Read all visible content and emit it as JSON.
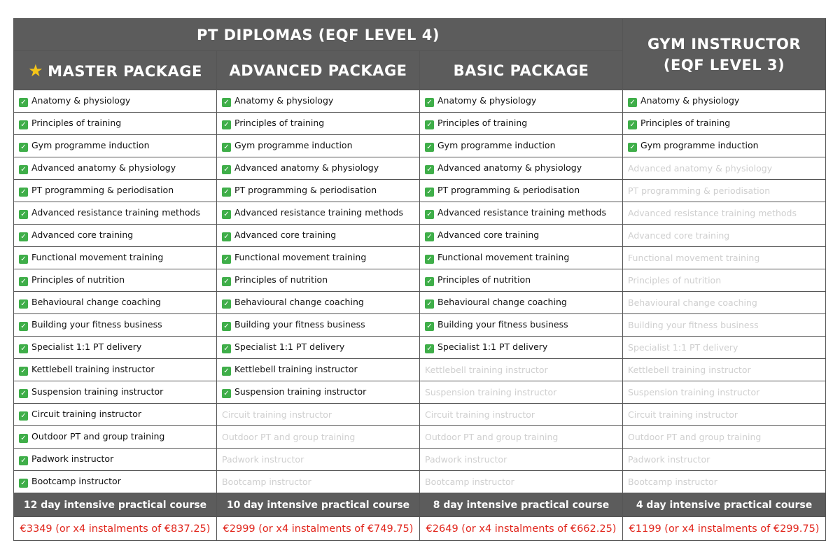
{
  "header": {
    "pt_title": "PT DIPLOMAS (EQF LEVEL 4)",
    "gym_line1": "GYM INSTRUCTOR",
    "gym_line2": "(EQF LEVEL 3)",
    "star_icon": "star-icon"
  },
  "columns": [
    {
      "name": "MASTER PACKAGE",
      "duration": "12 day intensive practical course",
      "price": "€3349 (or x4 instalments of €837.25)"
    },
    {
      "name": "ADVANCED PACKAGE",
      "duration": "10 day intensive practical course",
      "price": "€2999 (or x4 instalments of €749.75)"
    },
    {
      "name": "BASIC PACKAGE",
      "duration": "8 day intensive practical course",
      "price": "€2649 (or x4 instalments of €662.25)"
    },
    {
      "name": "GYM INSTRUCTOR (EQF LEVEL 3)",
      "duration": "4 day intensive practical course",
      "price": "€1199 (or x4 instalments of €299.75)"
    }
  ],
  "features": [
    {
      "label": "Anatomy & physiology",
      "included": [
        true,
        true,
        true,
        true
      ]
    },
    {
      "label": "Principles of training",
      "included": [
        true,
        true,
        true,
        true
      ]
    },
    {
      "label": "Gym programme induction",
      "included": [
        true,
        true,
        true,
        true
      ]
    },
    {
      "label": "Advanced anatomy & physiology",
      "included": [
        true,
        true,
        true,
        false
      ]
    },
    {
      "label": "PT programming & periodisation",
      "included": [
        true,
        true,
        true,
        false
      ]
    },
    {
      "label": "Advanced resistance training methods",
      "included": [
        true,
        true,
        true,
        false
      ]
    },
    {
      "label": "Advanced core training",
      "included": [
        true,
        true,
        true,
        false
      ]
    },
    {
      "label": "Functional movement training",
      "included": [
        true,
        true,
        true,
        false
      ]
    },
    {
      "label": "Principles of nutrition",
      "included": [
        true,
        true,
        true,
        false
      ]
    },
    {
      "label": "Behavioural change coaching",
      "included": [
        true,
        true,
        true,
        false
      ]
    },
    {
      "label": "Building your fitness business",
      "included": [
        true,
        true,
        true,
        false
      ]
    },
    {
      "label": "Specialist 1:1 PT delivery",
      "included": [
        true,
        true,
        true,
        false
      ]
    },
    {
      "label": "Kettlebell training instructor",
      "included": [
        true,
        true,
        false,
        false
      ]
    },
    {
      "label": "Suspension training instructor",
      "included": [
        true,
        true,
        false,
        false
      ]
    },
    {
      "label": "Circuit training instructor",
      "included": [
        true,
        false,
        false,
        false
      ]
    },
    {
      "label": "Outdoor PT and group training",
      "included": [
        true,
        false,
        false,
        false
      ]
    },
    {
      "label": "Padwork instructor",
      "included": [
        true,
        false,
        false,
        false
      ]
    },
    {
      "label": "Bootcamp instructor",
      "included": [
        true,
        false,
        false,
        false
      ]
    }
  ],
  "colors": {
    "header_bg": "#5c5c5c",
    "check_green": "#3fae49",
    "price_red": "#e1261c",
    "disabled_text": "#cfcfcf"
  }
}
